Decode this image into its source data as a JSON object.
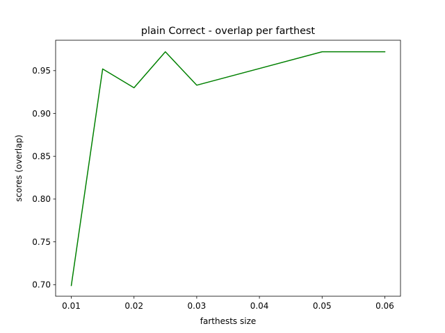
{
  "chart_data": {
    "type": "line",
    "title": "plain Correct - overlap per farthest",
    "xlabel": "farthests size",
    "ylabel": "scores (overlap)",
    "xlim": [
      0.0075,
      0.0625
    ],
    "ylim": [
      0.6865,
      0.9855
    ],
    "x_ticks": [
      0.01,
      0.02,
      0.03,
      0.04,
      0.05,
      0.06
    ],
    "x_tick_labels": [
      "0.01",
      "0.02",
      "0.03",
      "0.04",
      "0.05",
      "0.06"
    ],
    "y_ticks": [
      0.7,
      0.75,
      0.8,
      0.85,
      0.9,
      0.95
    ],
    "y_tick_labels": [
      "0.70",
      "0.75",
      "0.80",
      "0.85",
      "0.90",
      "0.95"
    ],
    "grid": false,
    "legend": "none",
    "series": [
      {
        "color": "#008000",
        "x": [
          0.01,
          0.015,
          0.02,
          0.025,
          0.03,
          0.05,
          0.06
        ],
        "y": [
          0.699,
          0.952,
          0.93,
          0.972,
          0.933,
          0.972,
          0.972
        ]
      }
    ]
  }
}
